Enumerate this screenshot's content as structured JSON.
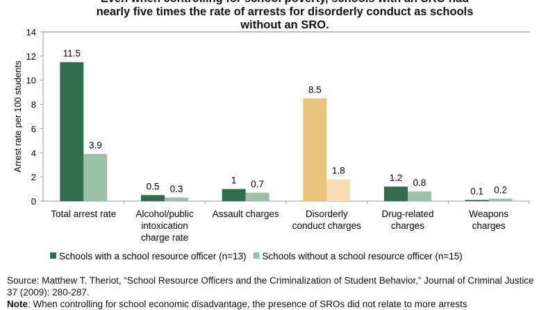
{
  "title_lines": [
    "Even when controlling for school poverty, schools with an SRO had",
    "nearly five times the rate of arrests for disorderly conduct as schools",
    "without an SRO."
  ],
  "source": "Source: Matthew T. Theriot, “School Resource Officers and the Criminalization of Student Behavior,” Journal of Criminal Justice 37 (2009): 280-287.",
  "note_label": "Note",
  "note_text": ": When controlling for school economic disadvantage, the presence of SROs did not relate to more arrests",
  "chart_data": {
    "type": "bar",
    "ylabel": "Arrest rate per 100 students",
    "ylim": [
      0,
      14
    ],
    "yticks": [
      0,
      2,
      4,
      6,
      8,
      10,
      12,
      14
    ],
    "grid": false,
    "legend": "bottom",
    "categories": [
      [
        "Total arrest rate"
      ],
      [
        "Alcohol/public",
        "intoxication",
        "charge rate"
      ],
      [
        "Assault charges"
      ],
      [
        "Disorderly",
        "conduct charges"
      ],
      [
        "Drug-related",
        "charges"
      ],
      [
        "Weapons",
        "charges"
      ]
    ],
    "series": [
      {
        "name": "Schools with a school resource officer (n=13)",
        "values": [
          11.5,
          0.5,
          1,
          8.5,
          1.2,
          0.1
        ],
        "labels": [
          "11.5",
          "0.5",
          "1",
          "8.5",
          "1.2",
          "0.1"
        ],
        "color": "#2f6e4c"
      },
      {
        "name": "Schools without a school resource officer (n=15)",
        "values": [
          3.9,
          0.3,
          0.7,
          1.8,
          0.8,
          0.2
        ],
        "labels": [
          "3.9",
          "0.3",
          "0.7",
          "1.8",
          "0.8",
          "0.2"
        ],
        "color": "#9dc0aa"
      }
    ],
    "highlight": {
      "category_index": 3,
      "colors": [
        "#eac47a",
        "#f6ddb5"
      ]
    }
  }
}
